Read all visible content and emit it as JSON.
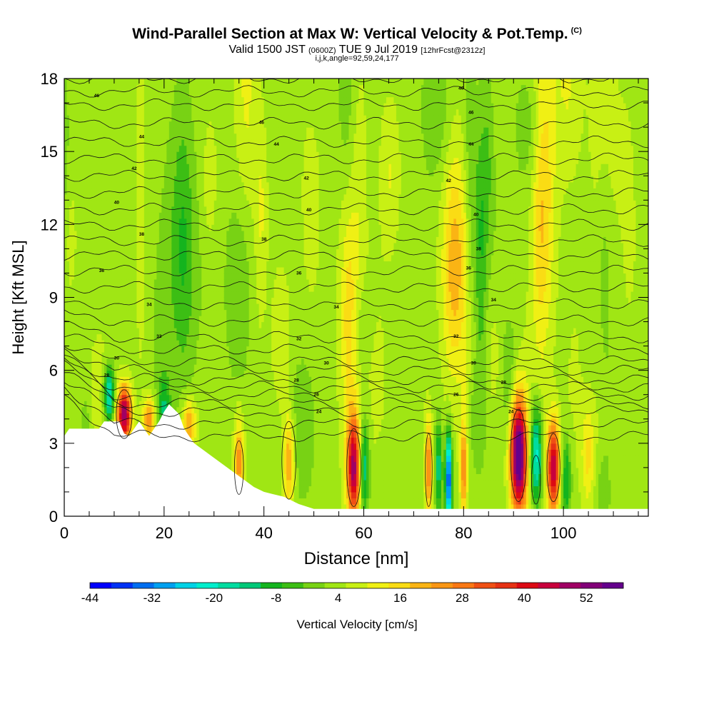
{
  "header": {
    "title": "Wind-Parallel Section at Max W: Vertical Velocity & Pot.Temp.",
    "copyright": "(C)",
    "valid_prefix": "Valid 1500 JST",
    "valid_utc": "(0600Z)",
    "valid_date": "TUE 9 Jul 2019",
    "forecast": "[12hrFcst@2312z]",
    "indices": "i,j,k,angle=92,59,24,177"
  },
  "chart_data": {
    "type": "heatmap",
    "title": "Wind-Parallel Section at Max W: Vertical Velocity & Pot.Temp.",
    "xlabel": "Distance [nm]",
    "ylabel": "Height [Kft MSL]",
    "xlim": [
      0,
      117
    ],
    "ylim": [
      0,
      18
    ],
    "x_ticks": [
      0,
      20,
      40,
      60,
      80,
      100
    ],
    "y_ticks": [
      0,
      3,
      6,
      9,
      12,
      15,
      18
    ],
    "colorbar": {
      "label": "Vertical Velocity [cm/s]",
      "tick_labels": [
        "-44",
        "-32",
        "-20",
        "-8",
        "4",
        "16",
        "28",
        "40",
        "52"
      ],
      "colors": [
        "#0000ff",
        "#0032f5",
        "#006ef0",
        "#00a0f0",
        "#00d2e6",
        "#00eecc",
        "#00dca0",
        "#00c878",
        "#14b41e",
        "#3cbe14",
        "#78d214",
        "#a0e614",
        "#c8f014",
        "#f0f014",
        "#fadc14",
        "#fab414",
        "#fa9614",
        "#fa7814",
        "#f05014",
        "#e63214",
        "#dc0a14",
        "#c8003c",
        "#a00064",
        "#820078",
        "#64008c"
      ]
    },
    "updraft_maxima_cm_s": [
      {
        "x_nm": 12,
        "height_kft": 4.2,
        "w": 40
      },
      {
        "x_nm": 58,
        "height_kft": 2.0,
        "w": 40
      },
      {
        "x_nm": 91,
        "height_kft": 2.5,
        "w": 52
      },
      {
        "x_nm": 98,
        "height_kft": 2.0,
        "w": 40
      }
    ],
    "downdraft_minima_cm_s": [
      {
        "x_nm": 77,
        "height_kft": 1.5,
        "w": -32
      },
      {
        "x_nm": 94,
        "height_kft": 2.5,
        "w": -20
      },
      {
        "x_nm": 9,
        "height_kft": 5.0,
        "w": -20
      }
    ],
    "theta_contour_labels": [
      {
        "text": "46",
        "x_nm": 6.5,
        "height_kft": 17.3
      },
      {
        "text": "46",
        "x_nm": 39.5,
        "height_kft": 16.2
      },
      {
        "text": "46",
        "x_nm": 79.5,
        "height_kft": 17.6
      },
      {
        "text": "46",
        "x_nm": 81.5,
        "height_kft": 16.6
      },
      {
        "text": "44",
        "x_nm": 15.5,
        "height_kft": 15.6
      },
      {
        "text": "44",
        "x_nm": 42.5,
        "height_kft": 15.3
      },
      {
        "text": "44",
        "x_nm": 81.5,
        "height_kft": 15.3
      },
      {
        "text": "42",
        "x_nm": 14.0,
        "height_kft": 14.3
      },
      {
        "text": "42",
        "x_nm": 48.5,
        "height_kft": 13.9
      },
      {
        "text": "42",
        "x_nm": 77.0,
        "height_kft": 13.8
      },
      {
        "text": "40",
        "x_nm": 10.5,
        "height_kft": 12.9
      },
      {
        "text": "40",
        "x_nm": 49.0,
        "height_kft": 12.6
      },
      {
        "text": "40",
        "x_nm": 82.5,
        "height_kft": 12.4
      },
      {
        "text": "38",
        "x_nm": 15.5,
        "height_kft": 11.6
      },
      {
        "text": "38",
        "x_nm": 40.0,
        "height_kft": 11.4
      },
      {
        "text": "38",
        "x_nm": 83.0,
        "height_kft": 11.0
      },
      {
        "text": "36",
        "x_nm": 7.5,
        "height_kft": 10.1
      },
      {
        "text": "36",
        "x_nm": 47.0,
        "height_kft": 10.0
      },
      {
        "text": "36",
        "x_nm": 81.0,
        "height_kft": 10.2
      },
      {
        "text": "34",
        "x_nm": 17.0,
        "height_kft": 8.7
      },
      {
        "text": "34",
        "x_nm": 54.5,
        "height_kft": 8.6
      },
      {
        "text": "34",
        "x_nm": 86.0,
        "height_kft": 8.9
      },
      {
        "text": "32",
        "x_nm": 19.0,
        "height_kft": 7.4
      },
      {
        "text": "32",
        "x_nm": 47.0,
        "height_kft": 7.3
      },
      {
        "text": "32",
        "x_nm": 78.5,
        "height_kft": 7.4
      },
      {
        "text": "30",
        "x_nm": 10.5,
        "height_kft": 6.5
      },
      {
        "text": "30",
        "x_nm": 52.5,
        "height_kft": 6.3
      },
      {
        "text": "30",
        "x_nm": 82.0,
        "height_kft": 6.3
      },
      {
        "text": "28",
        "x_nm": 8.5,
        "height_kft": 5.8
      },
      {
        "text": "28",
        "x_nm": 46.5,
        "height_kft": 5.6
      },
      {
        "text": "28",
        "x_nm": 88.0,
        "height_kft": 5.5
      },
      {
        "text": "26",
        "x_nm": 50.5,
        "height_kft": 5.0
      },
      {
        "text": "26",
        "x_nm": 78.5,
        "height_kft": 5.0
      },
      {
        "text": "24",
        "x_nm": 51.0,
        "height_kft": 4.3
      },
      {
        "text": "24",
        "x_nm": 89.5,
        "height_kft": 4.3
      }
    ]
  }
}
